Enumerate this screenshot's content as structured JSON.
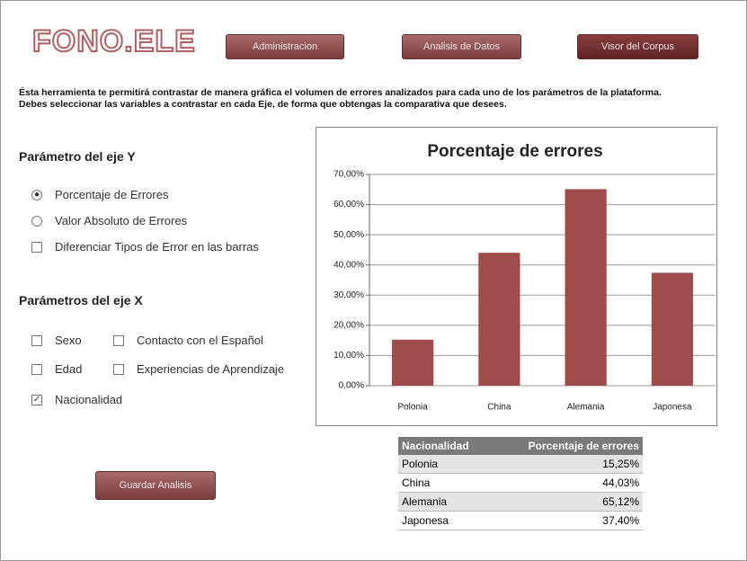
{
  "header": {
    "logo": "FONO.ELE",
    "nav": [
      "Administracion",
      "Analisis de Datos",
      "Visor del Corpus"
    ]
  },
  "intro": "Ésta herramienta te permitirá contrastar de manera gráfica el volumen de errores analizados para cada uno de los parámetros de la plataforma. Debes seleccionar las variables a contrastar en cada Eje, de forma que obtengas la comparativa que desees.",
  "y_params": {
    "title": "Parámetro del eje Y",
    "options": [
      {
        "label": "Porcentaje de Errores",
        "kind": "radio",
        "selected": true
      },
      {
        "label": "Valor Absoluto de Errores",
        "kind": "radio",
        "selected": false
      },
      {
        "label": "Diferenciar Tipos de Error en las barras",
        "kind": "checkbox",
        "selected": false
      }
    ]
  },
  "x_params": {
    "title": "Parámetros del eje X",
    "options": [
      {
        "label": "Sexo",
        "selected": false
      },
      {
        "label": "Contacto con el Español",
        "selected": false
      },
      {
        "label": "Edad",
        "selected": false
      },
      {
        "label": "Experiencias de Aprendizaje",
        "selected": false
      },
      {
        "label": "Nacionalidad",
        "selected": true
      }
    ]
  },
  "save_button": "Guardar Analisis",
  "table": {
    "header": [
      "Nacionalidad",
      "Porcentaje de errores"
    ]
  },
  "chart_data": {
    "type": "bar",
    "title": "Porcentaje de errores",
    "categories": [
      "Polonia",
      "China",
      "Alemania",
      "Japonesa"
    ],
    "values": [
      15.25,
      44.03,
      65.12,
      37.4
    ],
    "value_labels": [
      "15,25%",
      "44,03%",
      "65,12%",
      "37,40%"
    ],
    "color": "#9e4b4b",
    "ylim": [
      0,
      70
    ],
    "yticks": [
      {
        "value": 0,
        "label": "0,00%"
      },
      {
        "value": 10,
        "label": "10,00%"
      },
      {
        "value": 20,
        "label": "20,00%"
      },
      {
        "value": 30,
        "label": "30,00%"
      },
      {
        "value": 40,
        "label": "40,00%"
      },
      {
        "value": 50,
        "label": "50,00%"
      },
      {
        "value": 60,
        "label": "60,00%"
      },
      {
        "value": 70,
        "label": "70,00%"
      }
    ],
    "grid": true
  }
}
